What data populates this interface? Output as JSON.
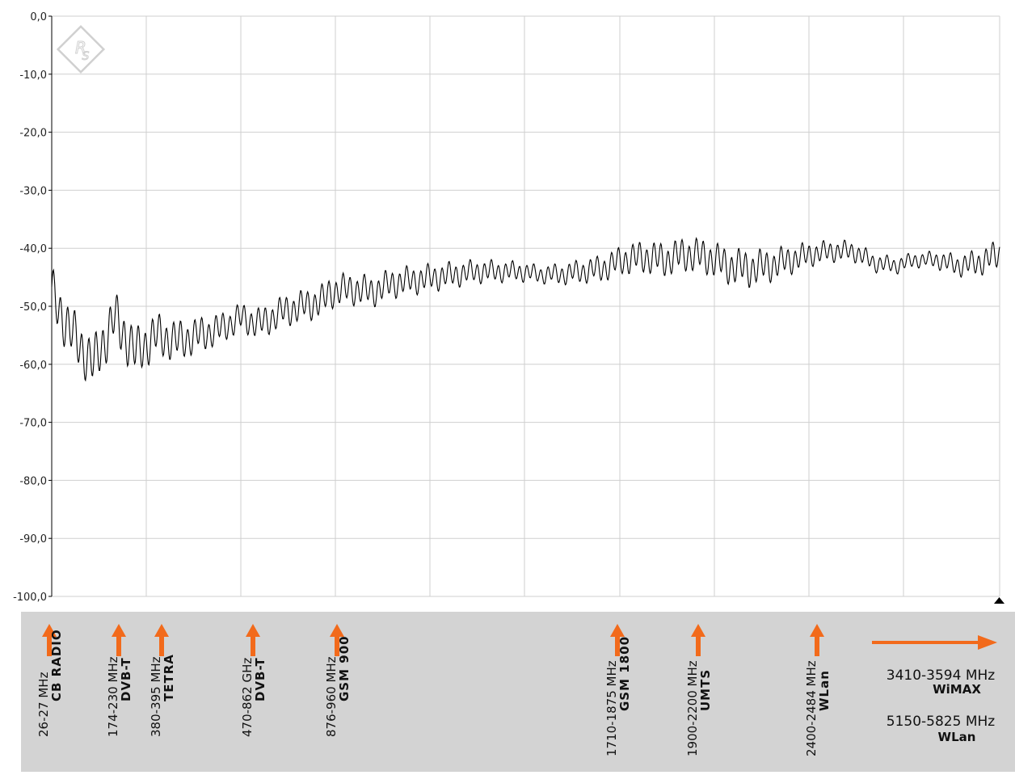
{
  "chart_data": {
    "type": "line",
    "title": "",
    "xlabel": "",
    "ylabel": "",
    "ylim": [
      -100,
      0
    ],
    "yticks": [
      "0,0",
      "-10,0",
      "-20,0",
      "-30,0",
      "-40,0",
      "-50,0",
      "-60,0",
      "-70,0",
      "-80,0",
      "-90,0",
      "-100,0"
    ],
    "grid": true,
    "legend": "none",
    "series_color": "#000000",
    "series": [
      {
        "points": [
          [
            0,
            -48
          ],
          [
            3,
            -55
          ],
          [
            6,
            -60
          ],
          [
            9,
            -52
          ],
          [
            12,
            -58
          ],
          [
            15,
            -55
          ],
          [
            18,
            -56
          ],
          [
            21,
            -55
          ],
          [
            24,
            -54
          ],
          [
            27,
            -52
          ],
          [
            30,
            -53
          ],
          [
            33,
            -51
          ],
          [
            36,
            -50
          ],
          [
            39,
            -49
          ],
          [
            40,
            -47.5
          ],
          [
            43,
            -47
          ],
          [
            46,
            -47.5
          ],
          [
            49,
            -46
          ],
          [
            52,
            -45.5
          ],
          [
            55,
            -45
          ],
          [
            58,
            -44.5
          ],
          [
            61,
            -44
          ],
          [
            64,
            -44
          ],
          [
            67,
            -44
          ],
          [
            70,
            -44.5
          ],
          [
            73,
            -44.5
          ],
          [
            76,
            -44
          ],
          [
            79,
            -43.5
          ],
          [
            82,
            -42
          ],
          [
            85,
            -41.5
          ],
          [
            88,
            -42
          ],
          [
            91,
            -41
          ],
          [
            94,
            -41.5
          ],
          [
            97,
            -43
          ],
          [
            100,
            -43.5
          ],
          [
            103,
            -43
          ],
          [
            106,
            -42
          ],
          [
            109,
            -41
          ],
          [
            112,
            -40.5
          ],
          [
            115,
            -40.5
          ],
          [
            118,
            -42.5
          ],
          [
            121,
            -43
          ],
          [
            124,
            -42
          ],
          [
            127,
            -42
          ],
          [
            130,
            -43
          ],
          [
            133,
            -42.5
          ],
          [
            136,
            -41
          ]
        ],
        "ripple": [
          [
            0,
            3.5
          ],
          [
            10,
            3.5
          ],
          [
            25,
            2
          ],
          [
            40,
            2.2
          ],
          [
            55,
            1.8
          ],
          [
            70,
            1.2
          ],
          [
            85,
            2.2
          ],
          [
            100,
            2.5
          ],
          [
            110,
            1.5
          ],
          [
            125,
            1
          ],
          [
            136,
            2
          ]
        ]
      }
    ],
    "band_markers": [
      {
        "freq": "26-27 MHz",
        "name": "CB RADIO"
      },
      {
        "freq": "174-230 MHz",
        "name": "DVB-T"
      },
      {
        "freq": "380-395 MHz",
        "name": "TETRA"
      },
      {
        "freq": "470-862 GHz",
        "name": "DVB-T"
      },
      {
        "freq": "876-960 MHz",
        "name": "GSM 900"
      },
      {
        "freq": "1710-1875 MHz",
        "name": "GSM 1800"
      },
      {
        "freq": "1900-2200 MHz",
        "name": "UMTS"
      },
      {
        "freq": "2400-2484 MHz",
        "name": "WLan"
      }
    ],
    "out_of_range_bands": [
      {
        "freq": "3410-3594 MHz",
        "name": "WiMAX"
      },
      {
        "freq": "5150-5825 MHz",
        "name": "WLan"
      }
    ],
    "arrow_color": "#f26a1b",
    "band_area_color": "#d3d3d3",
    "grid_color": "#cfcfcf",
    "logo_color": "#d0d0d0"
  }
}
